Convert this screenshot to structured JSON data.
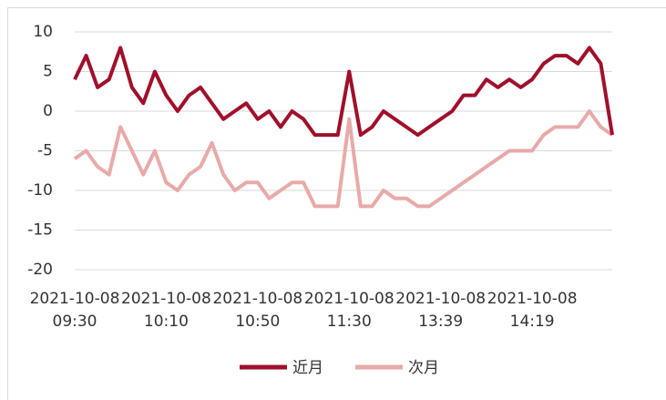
{
  "chart_data": {
    "type": "line",
    "categories": [
      "2021-10-08\n09:30",
      null,
      null,
      null,
      null,
      null,
      null,
      null,
      "2021-10-08\n10:10",
      null,
      null,
      null,
      null,
      null,
      null,
      null,
      "2021-10-08\n10:50",
      null,
      null,
      null,
      null,
      null,
      null,
      null,
      "2021-10-08\n11:30",
      null,
      null,
      null,
      null,
      null,
      null,
      null,
      "2021-10-08\n13:39",
      null,
      null,
      null,
      null,
      null,
      null,
      null,
      "2021-10-08\n14:19",
      null,
      null,
      null,
      null,
      null,
      null,
      null
    ],
    "series": [
      {
        "name": "近月",
        "color": "#a0102a",
        "values": [
          4,
          7,
          3,
          4,
          8,
          3,
          1,
          5,
          2,
          0,
          2,
          3,
          1,
          -1,
          0,
          1,
          -1,
          0,
          -2,
          0,
          -1,
          -3,
          -3,
          -3,
          5,
          -3,
          -2,
          0,
          -1,
          -2,
          -3,
          -2,
          -1,
          0,
          2,
          2,
          4,
          3,
          4,
          3,
          4,
          6,
          7,
          7,
          6,
          8,
          6,
          -3
        ]
      },
      {
        "name": "次月",
        "color": "#e8aaa8",
        "values": [
          -6,
          -5,
          -7,
          -8,
          -2,
          -5,
          -8,
          -5,
          -9,
          -10,
          -8,
          -7,
          -4,
          -8,
          -10,
          -9,
          -9,
          -11,
          -10,
          -9,
          -9,
          -12,
          -12,
          -12,
          -1,
          -12,
          -12,
          -10,
          -11,
          -11,
          -12,
          -12,
          -11,
          -10,
          -9,
          -8,
          -7,
          -6,
          -5,
          -5,
          -5,
          -3,
          -2,
          -2,
          -2,
          0,
          -2,
          -3
        ]
      }
    ],
    "ylim": [
      -20,
      10
    ],
    "yticks": [
      -20,
      -15,
      -10,
      -5,
      0,
      5,
      10
    ],
    "grid": true,
    "legend": "bottom"
  }
}
